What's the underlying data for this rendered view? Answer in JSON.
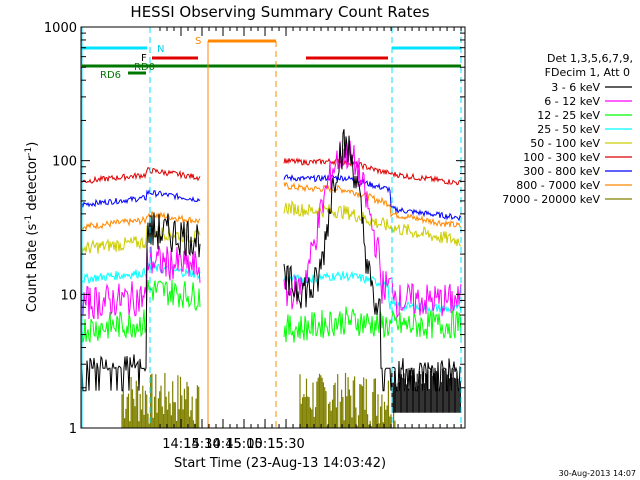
{
  "chart_data": {
    "type": "line",
    "title": "HESSI Observing Summary Count Rates",
    "xlabel": "Start Time (23-Aug-13 14:03:42)",
    "ylabel_main": "Count Rate (s",
    "ylabel_sup1": "-1",
    "ylabel_mid": " detector",
    "ylabel_sup2": "-1",
    "ylabel_end": ")",
    "ylog": true,
    "ylim": [
      1,
      1000
    ],
    "xlim_minutes": [
      14.06,
      18.63
    ],
    "x_ticks": [
      {
        "label": "14:15",
        "value": 15.25
      },
      {
        "label": "14:30",
        "value": 15.5
      },
      {
        "label": "14:45",
        "value": 15.75
      },
      {
        "label": "15:00",
        "value": 16.0
      },
      {
        "label": "15:15",
        "value": 16.25
      },
      {
        "label": "15:30",
        "value": 16.5
      }
    ],
    "y_ticks": [
      {
        "label": "1",
        "value": 1
      },
      {
        "label": "10",
        "value": 10
      },
      {
        "label": "100",
        "value": 100
      },
      {
        "label": "1000",
        "value": 1000
      }
    ],
    "legend": {
      "header1": "Det 1,3,5,6,7,9,",
      "header2": "FDecim 1, Att 0",
      "placement": "right"
    },
    "series": [
      {
        "name": "3 - 6 keV",
        "color": "#000000"
      },
      {
        "name": "6 - 12 keV",
        "color": "#ff00ff"
      },
      {
        "name": "12 - 25 keV",
        "color": "#00ff00"
      },
      {
        "name": "25 - 50 keV",
        "color": "#00ffff"
      },
      {
        "name": "50 - 100 keV",
        "color": "#cccc00"
      },
      {
        "name": "100 - 300 keV",
        "color": "#dd0000"
      },
      {
        "name": "300 - 800 keV",
        "color": "#0000ff"
      },
      {
        "name": "800 - 7000 keV",
        "color": "#ff8800"
      },
      {
        "name": "7000 - 20000 keV",
        "color": "#808000"
      }
    ],
    "flag_labels": {
      "n": "N",
      "f": "F",
      "rd0": "RD0",
      "rd6": "RD6",
      "s": "S"
    },
    "footer_date": "30-Aug-2013 14:07"
  }
}
